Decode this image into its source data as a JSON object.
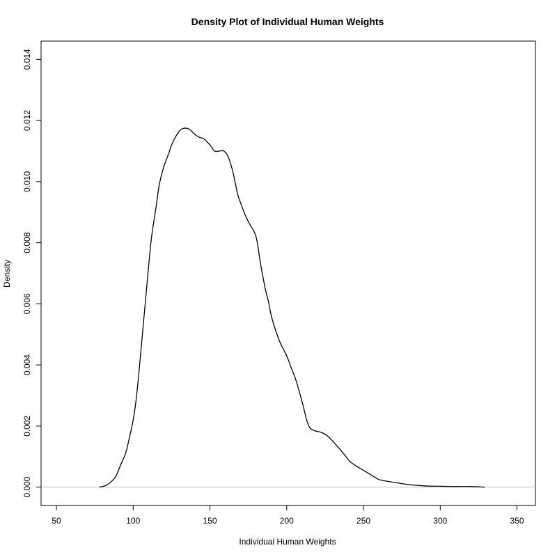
{
  "chart_data": {
    "type": "line",
    "title": "Density Plot of Individual Human Weights",
    "xlabel": "Individual Human Weights",
    "ylabel": "Density",
    "xlim": [
      40,
      362
    ],
    "ylim": [
      -0.0006,
      0.0146
    ],
    "x_ticks": [
      50,
      100,
      150,
      200,
      250,
      300,
      350
    ],
    "y_ticks": [
      0.0,
      0.002,
      0.004,
      0.006,
      0.008,
      0.01,
      0.012,
      0.014
    ],
    "x_tick_labels": [
      "50",
      "100",
      "150",
      "200",
      "250",
      "300",
      "350"
    ],
    "y_tick_labels": [
      "0.000",
      "0.002",
      "0.004",
      "0.006",
      "0.008",
      "0.010",
      "0.012",
      "0.014"
    ],
    "baseline": 0,
    "grid": false,
    "colors": {
      "line": "#000000",
      "baseline": "#bebebe",
      "frame": "#000000"
    },
    "series": [
      {
        "x": [
          78,
          82,
          85,
          88,
          90,
          92,
          95,
          97,
          100,
          102,
          104,
          106,
          108,
          110,
          112,
          115,
          117,
          120,
          123,
          125,
          128,
          131,
          134,
          137,
          140,
          143,
          146,
          150,
          153,
          156,
          159,
          162,
          165,
          168,
          170,
          173,
          176,
          180,
          183,
          186,
          188,
          190,
          193,
          196,
          200,
          203,
          206,
          210,
          213,
          215,
          218,
          222,
          226,
          231,
          237,
          241,
          245,
          250,
          255,
          260,
          267,
          272,
          280,
          290,
          300,
          310,
          320,
          329
        ],
        "y": [
          0.0,
          5e-05,
          0.00015,
          0.0003,
          0.0005,
          0.00075,
          0.0011,
          0.0015,
          0.0022,
          0.0029,
          0.0039,
          0.005,
          0.0061,
          0.0072,
          0.0082,
          0.0092,
          0.0099,
          0.0105,
          0.0109,
          0.0112,
          0.0115,
          0.0117,
          0.01175,
          0.0117,
          0.01155,
          0.01145,
          0.0114,
          0.0112,
          0.011,
          0.011,
          0.011,
          0.0108,
          0.0103,
          0.0096,
          0.0093,
          0.0089,
          0.0086,
          0.0082,
          0.0073,
          0.0065,
          0.0061,
          0.0056,
          0.0051,
          0.0047,
          0.0043,
          0.0039,
          0.0035,
          0.0028,
          0.0022,
          0.00195,
          0.00185,
          0.0018,
          0.0017,
          0.00145,
          0.0011,
          0.00085,
          0.0007,
          0.00055,
          0.0004,
          0.00025,
          0.00018,
          0.00014,
          8e-05,
          4e-05,
          3e-05,
          2e-05,
          2e-05,
          0.0
        ]
      }
    ]
  }
}
